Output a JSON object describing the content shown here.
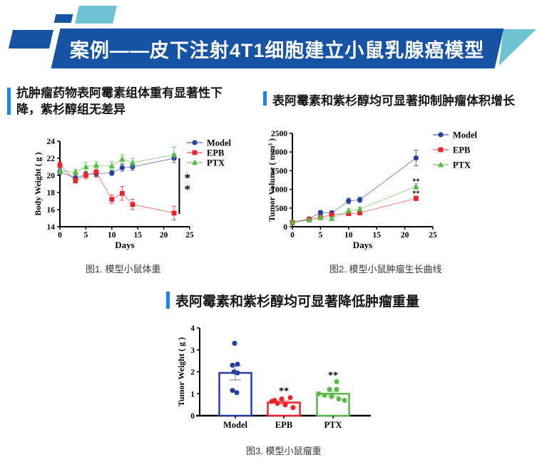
{
  "header": {
    "title": "案例——皮下注射4T1细胞建立小鼠乳腺癌模型",
    "colors": {
      "banner_blue": "#1653a4",
      "teal": "#6ec3d2",
      "accent_blue": "#1a87e6"
    }
  },
  "sections": {
    "left_title": "抗肿瘤药物表阿霉素组体重有显著性下降，紫杉醇组无差异",
    "right_title": "表阿霉素和紫杉醇均可显著抑制肿瘤体积增长",
    "bottom_title": "表阿霉素和紫杉醇均可显著降低肿瘤重量"
  },
  "captions": {
    "fig1": "图1. 模型小鼠体重",
    "fig2": "图2. 模型小鼠肿瘤生长曲线",
    "fig3": "图3. 模型小鼠瘤重"
  },
  "series_colors": {
    "Model": "#2340a0",
    "EPB": "#e9242a",
    "PTX": "#5ab948"
  },
  "chart_data": [
    {
      "id": "body-weight",
      "type": "line",
      "xlabel": "Days",
      "ylabel": "Body Weight ( g )",
      "x": [
        0,
        3,
        5,
        7,
        10,
        12,
        14,
        22
      ],
      "xlim": [
        0,
        25
      ],
      "xticks": [
        0,
        5,
        10,
        15,
        20,
        25
      ],
      "ylim": [
        14,
        24
      ],
      "yticks": [
        14,
        16,
        18,
        20,
        22,
        24
      ],
      "legend_position": "upper-right",
      "grid": false,
      "series": [
        {
          "name": "Model",
          "marker": "circle",
          "color": "#2340a0",
          "values": [
            20.4,
            19.7,
            20.1,
            20.2,
            20.3,
            20.9,
            21.0,
            22.0
          ],
          "err": [
            0.3,
            0.3,
            0.3,
            0.3,
            0.3,
            0.4,
            0.4,
            0.5
          ]
        },
        {
          "name": "EPB",
          "marker": "square",
          "color": "#e9242a",
          "values": [
            21.2,
            19.4,
            20.0,
            20.4,
            17.2,
            17.9,
            16.6,
            15.6
          ],
          "err": [
            0.4,
            0.3,
            0.4,
            0.6,
            0.5,
            0.8,
            0.6,
            0.8
          ]
        },
        {
          "name": "PTX",
          "marker": "triangle",
          "color": "#5ab948",
          "values": [
            20.5,
            20.4,
            21.0,
            21.2,
            21.1,
            21.9,
            21.5,
            22.4
          ],
          "err": [
            0.3,
            0.3,
            0.5,
            0.4,
            0.5,
            0.5,
            0.5,
            0.9
          ]
        }
      ],
      "sig_bracket": {
        "at_x": 23,
        "from_y": 22.0,
        "to_y": 15.5,
        "label": "**"
      }
    },
    {
      "id": "tumor-volume",
      "type": "line",
      "xlabel": "Days",
      "ylabel": "Tumor Volume ( mm³ )",
      "x": [
        0,
        3,
        5,
        7,
        10,
        12,
        22
      ],
      "xlim": [
        0,
        25
      ],
      "xticks": [
        0,
        5,
        10,
        15,
        20,
        25
      ],
      "ylim": [
        0,
        2500
      ],
      "yticks": [
        0,
        500,
        1000,
        1500,
        2000,
        2500
      ],
      "legend_position": "upper-right",
      "grid": false,
      "series": [
        {
          "name": "Model",
          "marker": "circle",
          "color": "#2340a0",
          "values": [
            120,
            210,
            380,
            370,
            690,
            720,
            1840
          ],
          "err": [
            25,
            40,
            50,
            55,
            75,
            70,
            210
          ]
        },
        {
          "name": "EPB",
          "marker": "square",
          "color": "#e9242a",
          "values": [
            110,
            195,
            250,
            320,
            350,
            370,
            760
          ],
          "err": [
            20,
            30,
            35,
            40,
            45,
            50,
            60
          ]
        },
        {
          "name": "PTX",
          "marker": "triangle",
          "color": "#5ab948",
          "values": [
            115,
            180,
            240,
            220,
            430,
            470,
            1080
          ],
          "err": [
            20,
            30,
            40,
            45,
            60,
            55,
            80
          ]
        }
      ],
      "sig_points": [
        {
          "x": 22,
          "y": 1150,
          "label": "**"
        },
        {
          "x": 22,
          "y": 830,
          "label": "**"
        }
      ]
    },
    {
      "id": "tumor-weight",
      "type": "bar",
      "ylabel": "Tumor Weight ( g )",
      "categories": [
        "Model",
        "EPB",
        "PTX"
      ],
      "bar_values": [
        1.95,
        0.6,
        1.0
      ],
      "bar_errors": [
        0.32,
        0.08,
        0.1
      ],
      "colors": [
        "#2340a0",
        "#e9242a",
        "#5ab948"
      ],
      "ylim": [
        0,
        4
      ],
      "yticks": [
        0,
        1,
        2,
        3,
        4
      ],
      "grid": false,
      "points": [
        {
          "values": [
            3.3,
            2.3,
            2.35,
            2.0,
            1.95,
            1.15,
            1.05
          ],
          "dx": [
            -1,
            -4,
            3,
            -2,
            3,
            -4,
            2
          ]
        },
        {
          "values": [
            0.65,
            0.7,
            0.56,
            0.76,
            0.49,
            0.82,
            0.37
          ],
          "dx": [
            -17,
            -13,
            -9,
            -3,
            2,
            9,
            13
          ]
        },
        {
          "values": [
            1.0,
            1.55,
            1.2,
            1.2,
            0.93,
            0.87,
            0.76,
            0.7
          ],
          "dx": [
            -20,
            5,
            -5,
            5,
            -12,
            -2,
            8,
            16
          ]
        }
      ],
      "sig": [
        "",
        "**",
        "**"
      ],
      "sig_y": [
        0,
        1.0,
        1.7
      ]
    }
  ]
}
